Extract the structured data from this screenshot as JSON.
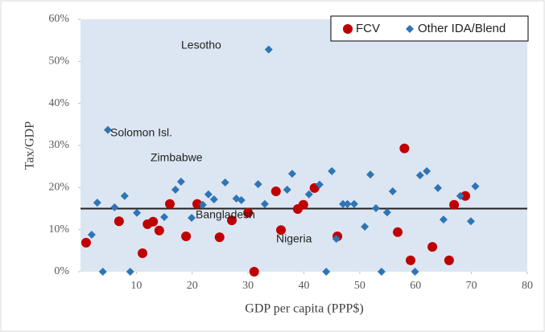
{
  "chart_data": {
    "type": "scatter",
    "x_label": "GDP per capita (PPP$)",
    "y_label": "Tax/GDP",
    "xlim": [
      0,
      80
    ],
    "xticks": [
      10,
      20,
      30,
      40,
      50,
      60,
      70,
      80
    ],
    "ylim": [
      0,
      60
    ],
    "yticks": [
      {
        "value": 0,
        "label": "0%"
      },
      {
        "value": 10,
        "label": "10%"
      },
      {
        "value": 20,
        "label": "20%"
      },
      {
        "value": 30,
        "label": "30%"
      },
      {
        "value": 40,
        "label": "40%"
      },
      {
        "value": 50,
        "label": "50%"
      },
      {
        "value": 60,
        "label": "60%"
      }
    ],
    "reference_line": 15,
    "legend": "upper right",
    "annotations": [
      "Lesotho",
      "Solomon Isl.",
      "Zimbabwe",
      "Bangladesh",
      "Nigeria"
    ],
    "series": [
      {
        "name": "FCV",
        "color": "#c00000",
        "marker": "circle",
        "x": [
          1.0,
          6.9,
          11.1,
          12.0,
          13.0,
          14.1,
          16.0,
          18.9,
          20.9,
          24.9,
          27.1,
          30.0,
          31.1,
          35.0,
          35.9,
          38.9,
          39.9,
          41.9,
          46.0,
          56.8,
          58.0,
          59.1,
          63.0,
          66.0,
          66.9,
          68.9
        ],
        "values": [
          6.9,
          12.0,
          4.4,
          11.3,
          11.9,
          9.8,
          16.1,
          8.4,
          16.1,
          8.2,
          12.2,
          14.0,
          0,
          19.1,
          9.9,
          14.9,
          15.9,
          19.9,
          8.4,
          9.4,
          29.3,
          2.7,
          5.9,
          2.7,
          15.9,
          18.0
        ]
      },
      {
        "name": "Other IDA/Blend",
        "color": "#2e75b6",
        "marker": "diamond",
        "x": [
          2.0,
          3.0,
          4.0,
          4.9,
          6.1,
          7.9,
          8.9,
          10.1,
          15.0,
          17.0,
          18.0,
          19.9,
          21.9,
          22.9,
          23.9,
          25.9,
          27.9,
          28.8,
          31.8,
          33.0,
          33.7,
          37.0,
          37.9,
          40.9,
          42.8,
          44.0,
          45.0,
          45.8,
          47.0,
          47.8,
          49.0,
          50.9,
          51.9,
          52.9,
          53.9,
          54.9,
          55.9,
          59.9,
          60.8,
          62.0,
          64.0,
          65.0,
          68.0,
          69.9,
          70.7
        ],
        "values": [
          8.8,
          16.4,
          0,
          33.7,
          15.3,
          18.0,
          0,
          14.0,
          13.0,
          19.5,
          21.4,
          12.8,
          15.9,
          18.4,
          17.2,
          21.2,
          17.4,
          17.0,
          20.8,
          16.1,
          52.8,
          19.5,
          23.3,
          18.4,
          20.7,
          0,
          23.9,
          7.8,
          16.1,
          16.1,
          16.1,
          10.7,
          23.1,
          15.1,
          0,
          14.1,
          19.1,
          0,
          22.9,
          23.9,
          19.9,
          12.4,
          18.0,
          12.0,
          20.3
        ]
      }
    ]
  }
}
